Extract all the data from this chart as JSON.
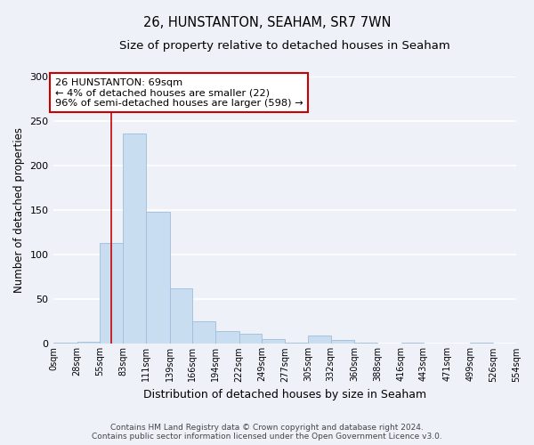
{
  "title": "26, HUNSTANTON, SEAHAM, SR7 7WN",
  "subtitle": "Size of property relative to detached houses in Seaham",
  "xlabel": "Distribution of detached houses by size in Seaham",
  "ylabel": "Number of detached properties",
  "bar_color": "#c9ddf0",
  "bar_edge_color": "#9fbcd8",
  "background_color": "#eef2f8",
  "grid_color": "#ffffff",
  "bin_edges": [
    0,
    28,
    55,
    83,
    111,
    139,
    166,
    194,
    222,
    249,
    277,
    305,
    332,
    360,
    388,
    416,
    443,
    471,
    499,
    526,
    554
  ],
  "bin_labels": [
    "0sqm",
    "28sqm",
    "55sqm",
    "83sqm",
    "111sqm",
    "139sqm",
    "166sqm",
    "194sqm",
    "222sqm",
    "249sqm",
    "277sqm",
    "305sqm",
    "332sqm",
    "360sqm",
    "388sqm",
    "416sqm",
    "443sqm",
    "471sqm",
    "499sqm",
    "526sqm",
    "554sqm"
  ],
  "bar_heights": [
    1,
    2,
    113,
    236,
    148,
    62,
    25,
    14,
    11,
    5,
    1,
    9,
    4,
    1,
    0,
    1,
    0,
    0,
    1,
    0,
    1
  ],
  "ylim": [
    0,
    300
  ],
  "yticks": [
    0,
    50,
    100,
    150,
    200,
    250,
    300
  ],
  "property_line_x": 69,
  "property_line_color": "#cc0000",
  "annotation_text": "26 HUNSTANTON: 69sqm\n← 4% of detached houses are smaller (22)\n96% of semi-detached houses are larger (598) →",
  "annotation_box_color": "#ffffff",
  "annotation_box_edge": "#cc0000",
  "footer_line1": "Contains HM Land Registry data © Crown copyright and database right 2024.",
  "footer_line2": "Contains public sector information licensed under the Open Government Licence v3.0."
}
